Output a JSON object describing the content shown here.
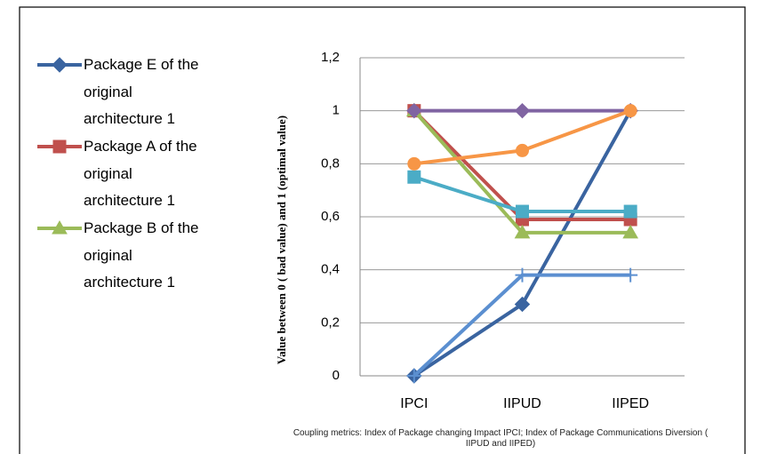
{
  "chart_data": {
    "type": "line",
    "y_axis_label": "Value between 0 ( bad value)  and 1 (optimal value)",
    "x_axis_label": "Coupling metrics: Index of Package changing Impact IPCI; Index of Package Communications Diversion ( IIPUD and  IIPED)",
    "categories": [
      "IPCI",
      "IIPUD",
      "IIPED"
    ],
    "ylim": [
      0,
      1.2
    ],
    "yticks": [
      0,
      {
        "value": 0.2,
        "label": "0,2"
      },
      {
        "value": 0.4,
        "label": "0,4"
      },
      {
        "value": 0.6,
        "label": "0,6"
      },
      {
        "value": 0.8,
        "label": "0,8"
      },
      1,
      {
        "value": 1.2,
        "label": "1,2"
      }
    ],
    "grid": true,
    "legend": "left",
    "series": [
      {
        "name": "Package E of the original architecture 1",
        "color": "#3a64a0",
        "marker": "diamond",
        "values": [
          0,
          0.27,
          1
        ]
      },
      {
        "name": "Package A of the original architecture 1",
        "color": "#c0504d",
        "marker": "square",
        "values": [
          1,
          0.59,
          0.59
        ]
      },
      {
        "name": "Package B of the original architecture 1",
        "color": "#9bbb59",
        "marker": "triangle",
        "values": [
          1,
          0.54,
          0.54
        ]
      },
      {
        "color": "#8064a2",
        "marker": "diamond",
        "values": [
          1,
          1,
          1
        ]
      },
      {
        "color": "#4bacc6",
        "marker": "square",
        "values": [
          0.75,
          0.62,
          0.62
        ]
      },
      {
        "color": "#f79646",
        "marker": "circle",
        "values": [
          0.8,
          0.85,
          1
        ]
      },
      {
        "color": "#5b8fd0",
        "marker": "plus",
        "values": [
          0,
          0.38,
          0.38
        ]
      }
    ]
  }
}
